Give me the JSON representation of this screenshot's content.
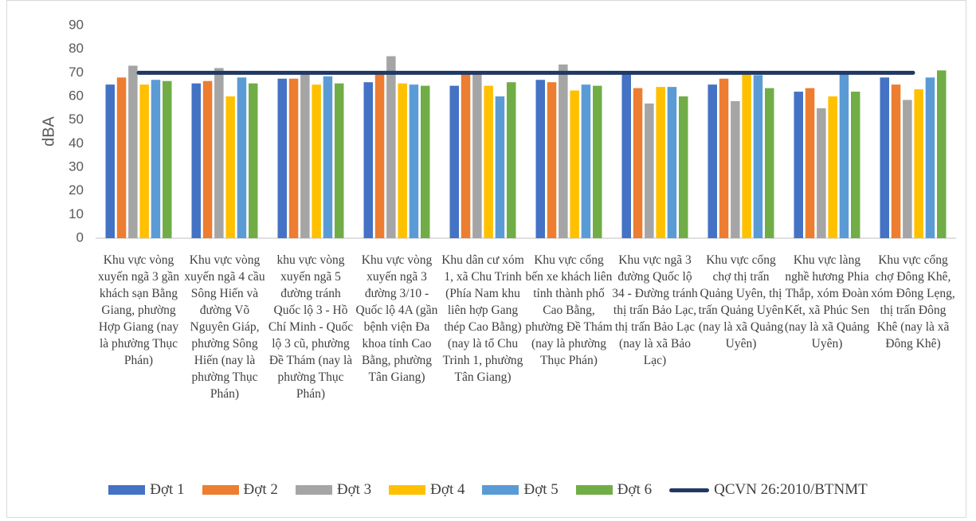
{
  "chart_data": {
    "type": "bar",
    "y_label": "dBA",
    "categories": [
      "Khu vực vòng xuyến ngã 3 gần khách sạn Bằng Giang, phường Hợp Giang (nay là phường Thục Phán)",
      "Khu vực vòng xuyến ngã 4 cầu Sông Hiến và đường Võ Nguyên Giáp, phường Sông Hiến (nay là phường Thục Phán)",
      "khu vực vòng xuyến ngã 5 đường tránh Quốc lộ 3 - Hồ Chí Minh - Quốc lộ 3 cũ, phường Đề Thám (nay là phường Thục Phán)",
      "Khu vực vòng xuyến ngã 3 đường 3/10 - Quốc lộ 4A (gần bệnh viện Đa khoa tỉnh Cao Bằng, phường Tân Giang)",
      "Khu dân cư xóm 1, xã Chu Trinh (Phía Nam khu liên hợp Gang thép Cao Bằng) (nay là tổ Chu Trinh 1, phường Tân Giang)",
      "Khu vực cổng bến xe khách liên tỉnh thành phố Cao Bằng, phường Đề Thám (nay là phường Thục Phán)",
      "Khu vực ngã 3 đường Quốc lộ 34 - Đường tránh thị trấn Bảo Lạc, thị trấn Bảo Lạc (nay là xã Bảo Lạc)",
      "Khu vực cổng chợ thị trấn Quảng Uyên, thị trấn Quảng Uyên (nay là xã Quảng Uyên)",
      "Khu vực làng nghề hương Phia Thắp, xóm Đoàn Kết, xã Phúc Sen (nay là xã Quảng Uyên)",
      "Khu vực cổng chợ Đông Khê, xóm Đông Lẹng, thị trấn Đông Khê (nay là xã Đông Khê)"
    ],
    "series": [
      {
        "name": "Đợt 1",
        "color": "#4472c4",
        "values": [
          65,
          65.5,
          67.5,
          66,
          64.5,
          67,
          70.5,
          65,
          62,
          68
        ]
      },
      {
        "name": "Đợt 2",
        "color": "#ed7d31",
        "values": [
          68,
          66.5,
          67.5,
          70,
          70,
          66,
          63.5,
          67.5,
          63.5,
          65
        ]
      },
      {
        "name": "Đợt 3",
        "color": "#a5a5a5",
        "values": [
          73,
          72,
          70,
          77,
          70,
          73.5,
          57,
          58,
          55,
          58.5
        ]
      },
      {
        "name": "Đợt 4",
        "color": "#ffc000",
        "values": [
          65,
          60,
          65,
          65.5,
          64.5,
          62.5,
          64,
          70,
          60,
          63
        ]
      },
      {
        "name": "Đợt 5",
        "color": "#5b9bd5",
        "values": [
          67,
          68,
          68.5,
          65,
          60,
          65,
          64,
          69,
          70,
          68
        ]
      },
      {
        "name": "Đợt 6",
        "color": "#70ad47",
        "values": [
          66.5,
          65.5,
          65.5,
          64.5,
          66,
          64.5,
          60,
          63.5,
          62,
          71
        ]
      },
      {
        "name": "QCVN 26:2010/BTNMT",
        "color": "#203864",
        "type": "line",
        "values": [
          70,
          70,
          70,
          70,
          70,
          70,
          70,
          70,
          70,
          70
        ]
      }
    ],
    "ylim": [
      0,
      90
    ],
    "yticks": [
      0,
      10,
      20,
      30,
      40,
      50,
      60,
      70,
      80,
      90
    ],
    "grid": false
  }
}
